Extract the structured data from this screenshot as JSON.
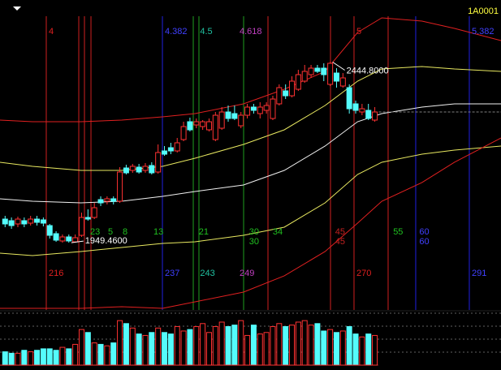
{
  "chart_data": {
    "type": "candlestick",
    "title": "1A0001",
    "xlim": [
      -0.8,
      77.8
    ],
    "ylim": [
      1765,
      2615
    ],
    "vlim": [
      0,
      70
    ],
    "up_color": "#ff3232",
    "down_color": "#54fcfc",
    "open": [
      2014.2,
      2009.8,
      2000.9,
      2009.8,
      2003.1,
      2014.2,
      2012,
      1996.4,
      1974.2,
      1954.2,
      1965.3,
      1951.9,
      1969.7,
      2018.7,
      2018.7,
      2067.6,
      2063.2,
      2069.9,
      2063.2,
      2154.4,
      2147.7,
      2156.6,
      2147.7,
      2161.1,
      2143.3,
      2201.1,
      2210,
      2201.1,
      2232.3,
      2281.2,
      2272.3,
      2267.9,
      2259,
      2232.3,
      2263.4,
      2307.9,
      2303.5,
      2270.1,
      2299,
      2321.3,
      2303.5,
      2312.4,
      2290.1,
      2330.2,
      2365.8,
      2352.4,
      2370.2,
      2392.5,
      2410.3,
      2428.1,
      2428.1,
      2383.6,
      2414.7,
      2379.1,
      2374.7,
      2330.2,
      2307.9,
      2312.4,
      2285.7
    ],
    "high": [
      2023.1,
      2018.7,
      2020.9,
      2018.7,
      2023.1,
      2023.1,
      2018.7,
      2000.9,
      1980.9,
      1972,
      1972,
      1972,
      2032,
      2040.9,
      2058.7,
      2076.5,
      2076.5,
      2076.5,
      2156.6,
      2163.3,
      2165.5,
      2165.5,
      2167.8,
      2170,
      2218.9,
      2214.5,
      2223.4,
      2236.7,
      2281.2,
      2292.4,
      2290.1,
      2285.7,
      2290.1,
      2307.9,
      2321.3,
      2325.7,
      2325.7,
      2307.9,
      2330.2,
      2330.2,
      2334.6,
      2334.6,
      2352.4,
      2383.6,
      2383.6,
      2405.8,
      2423.6,
      2437,
      2437,
      2437,
      2441.4,
      2444.8,
      2428.1,
      2414.7,
      2383.6,
      2339.1,
      2330.2,
      2330.2,
      2321.3
    ],
    "low": [
      1992,
      1987.5,
      1992,
      1992,
      1996.4,
      1996.4,
      1994.2,
      1960.8,
      1951.9,
      1949.7,
      1949.46,
      1951.9,
      1965.3,
      2009.8,
      2014.2,
      2049.8,
      2054.3,
      2054.3,
      2058.7,
      2136.6,
      2141.1,
      2138.8,
      2141.1,
      2136.6,
      2138.8,
      2187.8,
      2192.2,
      2196.7,
      2227.8,
      2254.5,
      2263.4,
      2259,
      2254.5,
      2227.8,
      2259,
      2281.2,
      2285.7,
      2263.4,
      2290.1,
      2303.5,
      2290.1,
      2303.5,
      2285.7,
      2325.7,
      2343.5,
      2348,
      2365.8,
      2388,
      2401.4,
      2414.7,
      2392.5,
      2379.1,
      2374.7,
      2374.7,
      2303.5,
      2303.5,
      2299,
      2285.7,
      2281.2
    ],
    "close": [
      2000.9,
      1996.4,
      2014.2,
      2000.9,
      2014.2,
      2005.3,
      2003.1,
      1969.7,
      1956.4,
      1965.3,
      1954.2,
      1963.1,
      2018.7,
      2014.2,
      2045.4,
      2058.7,
      2069.9,
      2063.2,
      2143.3,
      2141.1,
      2158.9,
      2143.3,
      2158.9,
      2141.1,
      2196.7,
      2192.2,
      2201.1,
      2223.4,
      2267.9,
      2259,
      2281.2,
      2281.2,
      2281.2,
      2299,
      2307.9,
      2290.1,
      2290.1,
      2299,
      2321.3,
      2312.4,
      2321.3,
      2325.7,
      2343.5,
      2374.7,
      2352.4,
      2392.5,
      2410.3,
      2419.2,
      2428.1,
      2419.2,
      2410.3,
      2441.4,
      2392.5,
      2401.4,
      2316.8,
      2312.4,
      2316.8,
      2290.1,
      2307.9
    ],
    "volume": [
      18,
      16,
      16,
      20,
      18,
      20,
      22,
      22,
      20,
      24,
      22,
      28,
      48,
      44,
      30,
      28,
      26,
      30,
      60,
      56,
      50,
      42,
      40,
      44,
      50,
      44,
      42,
      52,
      46,
      48,
      52,
      56,
      44,
      52,
      58,
      52,
      54,
      60,
      40,
      54,
      42,
      44,
      52,
      56,
      52,
      54,
      58,
      60,
      54,
      56,
      46,
      48,
      44,
      46,
      52,
      42,
      38,
      42,
      40
    ],
    "band_x": [
      -0.8,
      4.3,
      11.9,
      18.3,
      24.7,
      29.8,
      37.4,
      43.8,
      50.2,
      55.3,
      59.1,
      65.4,
      70.5,
      77.8
    ],
    "bands": [
      {
        "color": "#e02020",
        "values": [
          2285.7,
          2281.2,
          2281.2,
          2285.7,
          2294.6,
          2303.5,
          2330.2,
          2370.2,
          2419.2,
          2526,
          2566.1,
          2557.2,
          2537.1,
          2503.8
        ]
      },
      {
        "color": "#e8e860",
        "values": [
          2170,
          2158.9,
          2147.7,
          2147.7,
          2158.9,
          2181.1,
          2218.9,
          2259,
          2325.7,
          2392.5,
          2425.9,
          2432.6,
          2425.9,
          2419.2
        ]
      },
      {
        "color": "#f0f0f0",
        "values": [
          2069.9,
          2063.2,
          2058.7,
          2063.2,
          2076.5,
          2089.9,
          2107.7,
          2147.7,
          2214.5,
          2281.2,
          2303.5,
          2321.3,
          2330.2,
          2330.2
        ]
      },
      {
        "color": "#e8e860",
        "values": [
          1920.8,
          1914.1,
          1925.3,
          1936.4,
          1947.5,
          1951.9,
          1969.7,
          1992,
          2058.7,
          2136.6,
          2170,
          2192.2,
          2203.4,
          2214.5
        ]
      },
      {
        "color": "#e02020",
        "values": [
          1769.5,
          1769.5,
          1769.5,
          1774,
          1769.5,
          1787.3,
          1814,
          1858.5,
          1925.3,
          2003.1,
          2063.2,
          2114.4,
          2170,
          2236.7
        ]
      }
    ],
    "vlines": [
      {
        "x": 6.46,
        "color": "#d02020"
      },
      {
        "x": 11.56,
        "color": "#d02020"
      },
      {
        "x": 12.45,
        "color": "#d02020"
      },
      {
        "x": 13.47,
        "color": "#d02020"
      },
      {
        "x": 24.68,
        "color": "#2020e0"
      },
      {
        "x": 29.52,
        "color": "#20a020"
      },
      {
        "x": 30.41,
        "color": "#20a020"
      },
      {
        "x": 37.42,
        "color": "#20a020"
      },
      {
        "x": 41.24,
        "color": "#d02020"
      },
      {
        "x": 51.05,
        "color": "#d02020"
      },
      {
        "x": 54.74,
        "color": "#d02020"
      },
      {
        "x": 60.09,
        "color": "#d02020"
      },
      {
        "x": 64.42,
        "color": "#2020e0"
      },
      {
        "x": 72.83,
        "color": "#2020e0"
      }
    ],
    "top_labels": [
      {
        "x": 6.46,
        "text": "4",
        "color": "#e02020"
      },
      {
        "x": 24.68,
        "text": "4.382",
        "color": "#4040ff"
      },
      {
        "x": 30.2,
        "text": "4.5",
        "color": "#20c0a0"
      },
      {
        "x": 36.4,
        "text": "4.618",
        "color": "#c040c0"
      },
      {
        "x": 54.74,
        "text": "5",
        "color": "#e02020"
      },
      {
        "x": 72.83,
        "text": "5.382",
        "color": "#4040ff"
      }
    ],
    "mid_labels": [
      {
        "x": 12.96,
        "text": "23",
        "color": "#20c020"
      },
      {
        "x": 15.76,
        "text": "5",
        "color": "#20c020"
      },
      {
        "x": 18.05,
        "text": "8",
        "color": "#20c020"
      },
      {
        "x": 22.9,
        "text": "13",
        "color": "#20c020"
      },
      {
        "x": 30.0,
        "text": "21",
        "color": "#20c020"
      },
      {
        "x": 37.9,
        "text": "30",
        "color": "#20c020"
      },
      {
        "x": 41.6,
        "text": "34",
        "color": "#20c020"
      },
      {
        "x": 51.4,
        "text": "45",
        "color": "#c02020"
      },
      {
        "x": 60.5,
        "text": "55",
        "color": "#20c020"
      },
      {
        "x": 64.6,
        "text": "60",
        "color": "#4040ff"
      }
    ],
    "mid_labels_2": [
      {
        "x": 37.9,
        "text": "30",
        "color": "#20c020"
      },
      {
        "x": 51.4,
        "text": "45",
        "color": "#c02020"
      },
      {
        "x": 64.6,
        "text": "60",
        "color": "#4040ff"
      }
    ],
    "bottom_labels": [
      {
        "x": 6.46,
        "text": "216",
        "color": "#e02020"
      },
      {
        "x": 24.68,
        "text": "237",
        "color": "#4040ff"
      },
      {
        "x": 30.2,
        "text": "243",
        "color": "#20c0a0"
      },
      {
        "x": 36.4,
        "text": "249",
        "color": "#c040c0"
      },
      {
        "x": 54.74,
        "text": "270",
        "color": "#e02020"
      },
      {
        "x": 72.83,
        "text": "291",
        "color": "#4040ff"
      }
    ],
    "annotations": [
      {
        "x": 51,
        "value": 2444.8,
        "label": "2444.8000"
      },
      {
        "x": 10,
        "value": 1949.46,
        "label": "1949.4600"
      }
    ]
  }
}
